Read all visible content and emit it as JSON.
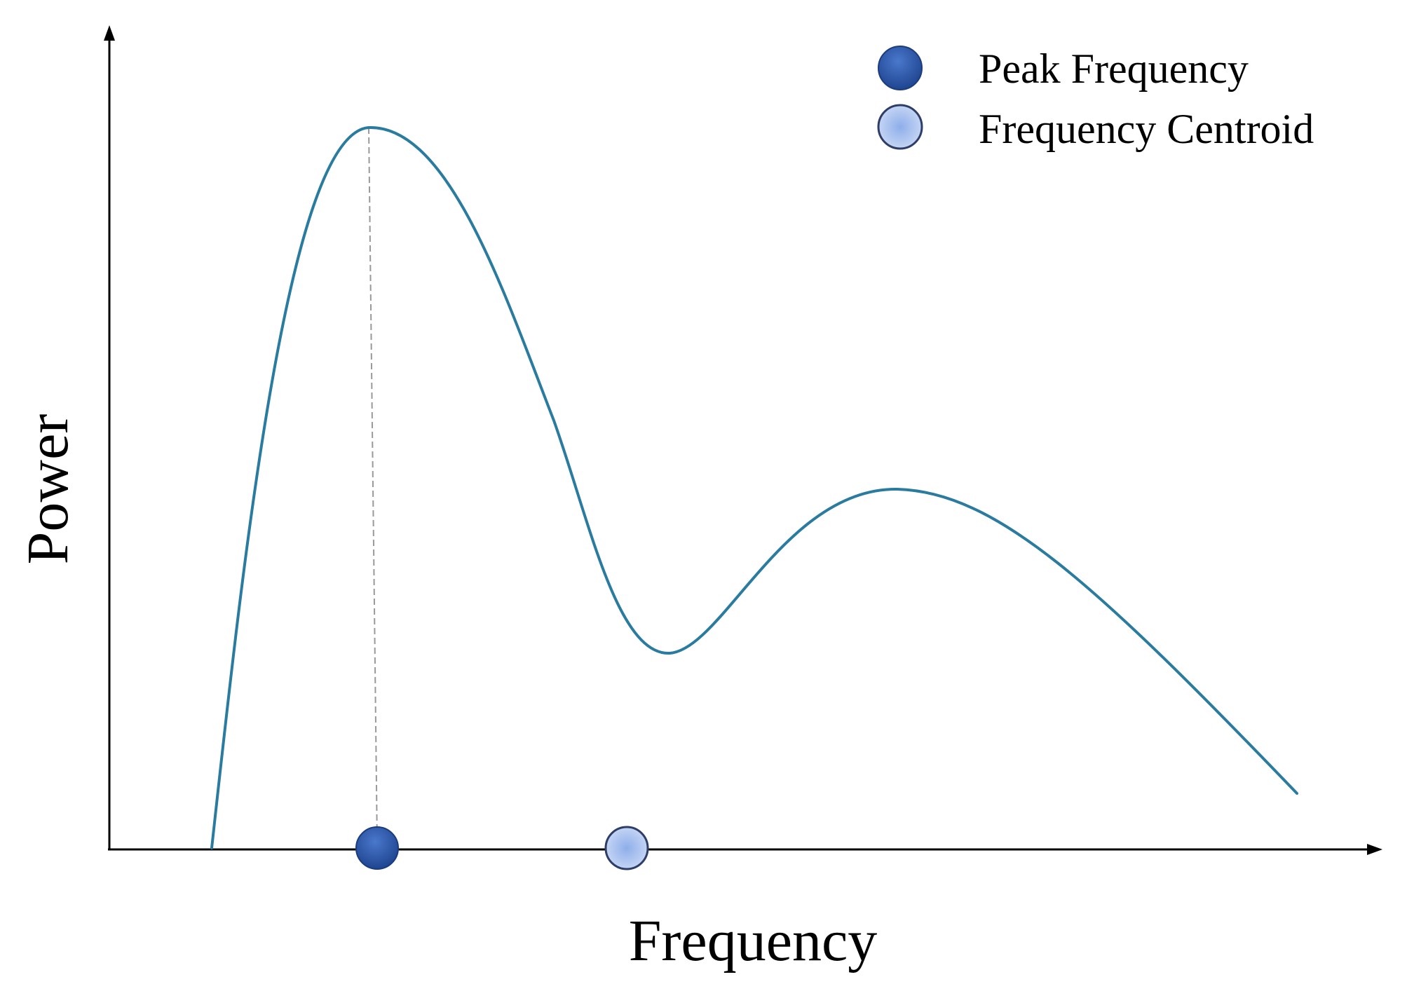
{
  "axes": {
    "x_label": "Frequency",
    "y_label": "Power"
  },
  "legend": {
    "items": [
      {
        "label": "Peak Frequency",
        "marker": "dark-blue-circle"
      },
      {
        "label": "Frequency Centroid",
        "marker": "light-blue-circle"
      }
    ]
  },
  "colors": {
    "curve": "#2a7ba0",
    "peak_marker": "#274f9c",
    "centroid_marker": "#b3c7ee",
    "axis": "#000000",
    "guide_line": "#999999"
  }
}
